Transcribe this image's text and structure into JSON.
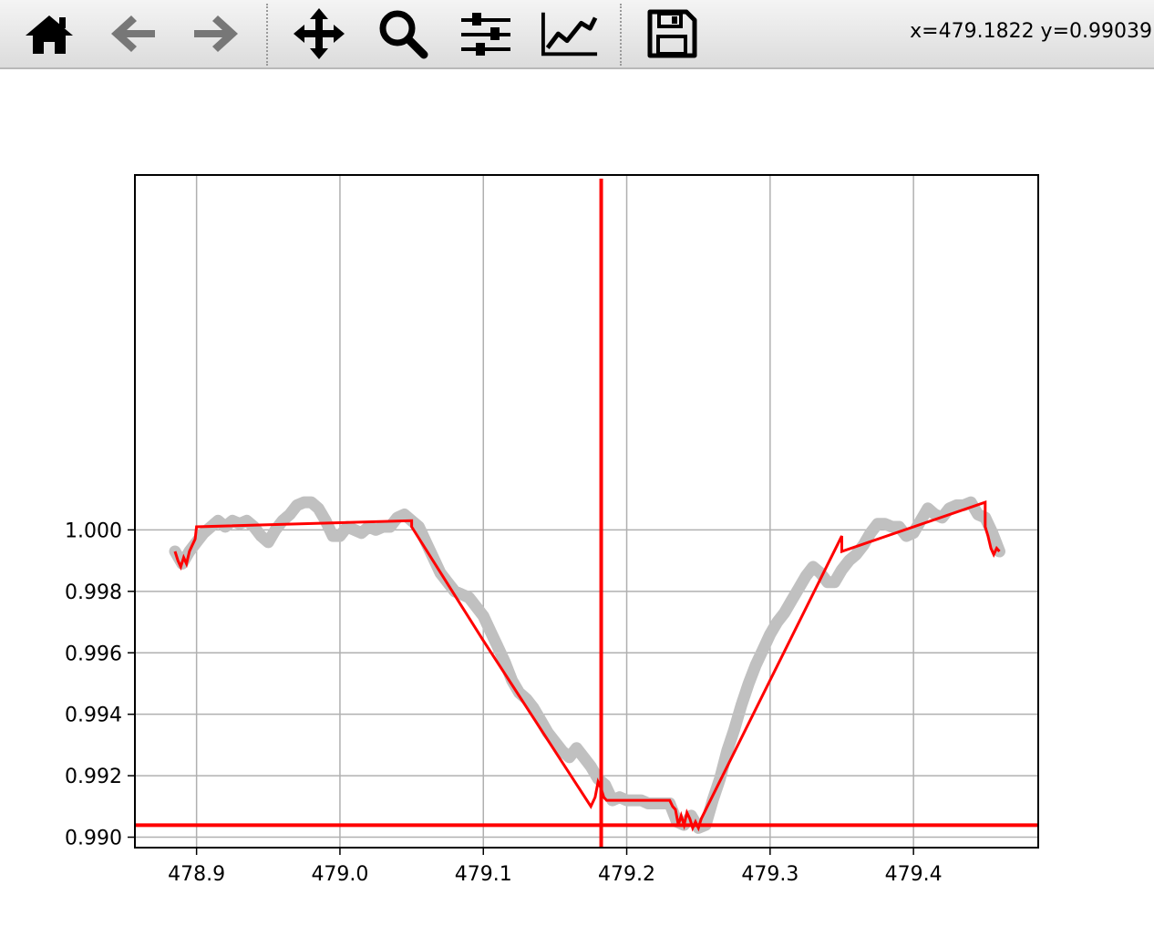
{
  "toolbar": {
    "buttons": [
      {
        "name": "home-button",
        "icon": "home-icon"
      },
      {
        "name": "back-button",
        "icon": "arrow-left-icon"
      },
      {
        "name": "forward-button",
        "icon": "arrow-right-icon"
      },
      {
        "name": "pan-button",
        "icon": "move-icon"
      },
      {
        "name": "zoom-button",
        "icon": "magnifier-icon"
      },
      {
        "name": "configure-subplots-button",
        "icon": "sliders-icon"
      },
      {
        "name": "edit-axis-button",
        "icon": "line-chart-icon"
      },
      {
        "name": "save-button",
        "icon": "floppy-disk-icon"
      }
    ],
    "coords": "x=479.1822 y=0.99039"
  },
  "chart_data": {
    "type": "line",
    "title": "",
    "xlabel": "",
    "ylabel": "",
    "xlim": [
      478.857,
      479.487
    ],
    "ylim": [
      0.98966,
      1.01155
    ],
    "xticks": [
      478.9,
      479.0,
      479.1,
      479.2,
      479.3,
      479.4
    ],
    "xtick_labels": [
      "478.9",
      "479.0",
      "479.1",
      "479.2",
      "479.3",
      "479.4"
    ],
    "yticks": [
      0.99,
      0.992,
      0.994,
      0.996,
      0.998,
      1.0
    ],
    "ytick_labels": [
      "0.990",
      "0.992",
      "0.994",
      "0.996",
      "0.998",
      "1.000"
    ],
    "grid": true,
    "colors": {
      "data": "#c0c0c0",
      "fit": "#ff0000",
      "cursor": "#ff0000",
      "grid": "#b0b0b0"
    },
    "series": [
      {
        "role": "data",
        "x": [
          478.885,
          478.89,
          478.895,
          478.9,
          478.905,
          478.91,
          478.915,
          478.92,
          478.925,
          478.93,
          478.935,
          478.94,
          478.945,
          478.95,
          478.955,
          478.96,
          478.965,
          478.97,
          478.975,
          478.98,
          478.985,
          478.99,
          478.995,
          479.0,
          479.005,
          479.01,
          479.015,
          479.02,
          479.025,
          479.03,
          479.035,
          479.04,
          479.045,
          479.05,
          479.055,
          479.06,
          479.065,
          479.07,
          479.075,
          479.08,
          479.085,
          479.09,
          479.095,
          479.1,
          479.105,
          479.11,
          479.115,
          479.12,
          479.125,
          479.13,
          479.135,
          479.14,
          479.145,
          479.15,
          479.155,
          479.16,
          479.165,
          479.17,
          479.175,
          479.18,
          479.185,
          479.19,
          479.195,
          479.2,
          479.205,
          479.21,
          479.215,
          479.22,
          479.225,
          479.23,
          479.235,
          479.24,
          479.245,
          479.25,
          479.255,
          479.26,
          479.265,
          479.27,
          479.275,
          479.28,
          479.285,
          479.29,
          479.295,
          479.3,
          479.305,
          479.31,
          479.315,
          479.32,
          479.325,
          479.33,
          479.335,
          479.34,
          479.345,
          479.35,
          479.355,
          479.36,
          479.365,
          479.37,
          479.375,
          479.38,
          479.385,
          479.39,
          479.395,
          479.4,
          479.405,
          479.41,
          479.415,
          479.42,
          479.425,
          479.43,
          479.435,
          479.44,
          479.445,
          479.45,
          479.455,
          479.46
        ],
        "y": [
          0.9993,
          0.9989,
          0.9993,
          0.9996,
          0.9999,
          1.0001,
          1.0003,
          1.0001,
          1.0003,
          1.0002,
          1.0003,
          1.0001,
          0.9998,
          0.9996,
          1.0,
          1.0003,
          1.0005,
          1.0008,
          1.0009,
          1.0009,
          1.0007,
          1.0003,
          0.9998,
          0.9998,
          1.0001,
          1.0,
          0.9999,
          1.0001,
          1.0,
          1.0001,
          1.0001,
          1.0004,
          1.0005,
          1.0003,
          1.0001,
          0.9996,
          0.9991,
          0.9986,
          0.9983,
          0.998,
          0.9979,
          0.9978,
          0.9975,
          0.9972,
          0.9967,
          0.9962,
          0.9957,
          0.9951,
          0.9947,
          0.9945,
          0.9942,
          0.9938,
          0.9934,
          0.9931,
          0.9928,
          0.9926,
          0.9929,
          0.9926,
          0.9923,
          0.9919,
          0.9917,
          0.9912,
          0.9913,
          0.9912,
          0.9912,
          0.9912,
          0.9911,
          0.9911,
          0.9911,
          0.9911,
          0.9905,
          0.9904,
          0.9907,
          0.9903,
          0.9904,
          0.9912,
          0.9919,
          0.9928,
          0.9935,
          0.9943,
          0.995,
          0.9956,
          0.9961,
          0.9966,
          0.997,
          0.9973,
          0.9977,
          0.9981,
          0.9985,
          0.9988,
          0.9986,
          0.9983,
          0.9983,
          0.9987,
          0.999,
          0.9992,
          0.9995,
          0.9999,
          1.0002,
          1.0002,
          1.0001,
          1.0001,
          0.9998,
          0.9999,
          1.0003,
          1.0007,
          1.0005,
          1.0004,
          1.0007,
          1.0008,
          1.0008,
          1.0009,
          1.0005,
          1.0004,
          0.9999,
          0.9993
        ]
      },
      {
        "role": "fit",
        "x": [
          478.885,
          478.887,
          478.889,
          478.891,
          478.893,
          478.895,
          478.897,
          478.899,
          478.9,
          479.05,
          479.05,
          479.1,
          479.175,
          479.178,
          479.18,
          479.182,
          479.184,
          479.186,
          479.188,
          479.23,
          479.232,
          479.234,
          479.236,
          479.238,
          479.24,
          479.242,
          479.244,
          479.246,
          479.248,
          479.25,
          479.252,
          479.35,
          479.35,
          479.45,
          479.45,
          479.452,
          479.454,
          479.456,
          479.458,
          479.46
        ],
        "y": [
          0.9993,
          0.999,
          0.9988,
          0.9991,
          0.9989,
          0.9993,
          0.9995,
          0.9997,
          1.0001,
          1.0003,
          1.0001,
          0.9964,
          0.991,
          0.9913,
          0.9918,
          0.9916,
          0.9913,
          0.9912,
          0.9912,
          0.9912,
          0.991,
          0.9909,
          0.9904,
          0.9907,
          0.9904,
          0.9908,
          0.9906,
          0.9903,
          0.9905,
          0.9903,
          0.9906,
          0.9998,
          0.9993,
          1.0009,
          1.0001,
          0.9998,
          0.9994,
          0.9992,
          0.9994,
          0.9993
        ]
      }
    ],
    "cursor": {
      "x": 479.1822,
      "y": 0.99039
    }
  }
}
